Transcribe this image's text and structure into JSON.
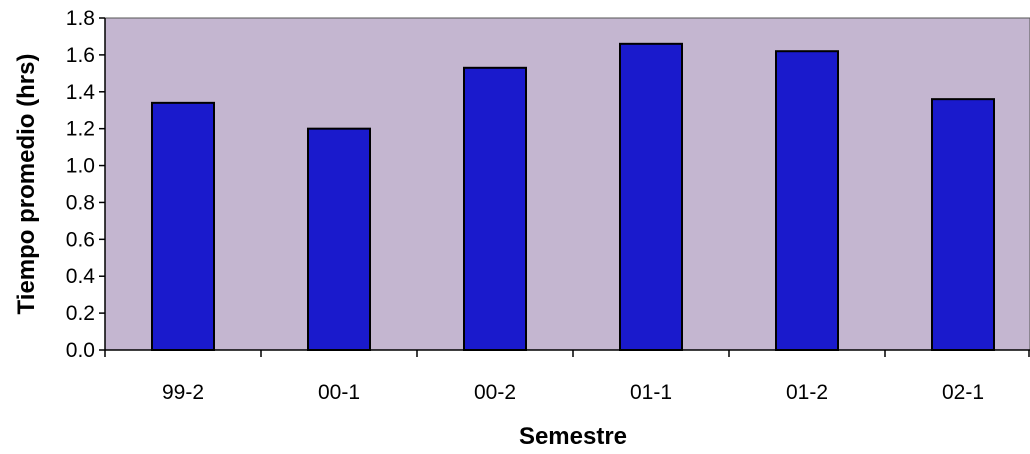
{
  "chart_data": {
    "type": "bar",
    "title": "",
    "xlabel": "Semestre",
    "ylabel": "Tiempo promedio (hrs)",
    "categories": [
      "99-2",
      "00-1",
      "00-2",
      "01-1",
      "01-2",
      "02-1"
    ],
    "values": [
      1.34,
      1.2,
      1.53,
      1.66,
      1.62,
      1.36
    ],
    "ylim": [
      0,
      1.8
    ],
    "yticks": [
      "0.0",
      "0.2",
      "0.4",
      "0.6",
      "0.8",
      "1.0",
      "1.2",
      "1.4",
      "1.6",
      "1.8"
    ],
    "grid": false,
    "legend": "none",
    "colors": {
      "bar": "#1a1acc",
      "bar_edge": "#000000",
      "plot_bg": "#c4b6d0",
      "axis": "#000000"
    }
  }
}
